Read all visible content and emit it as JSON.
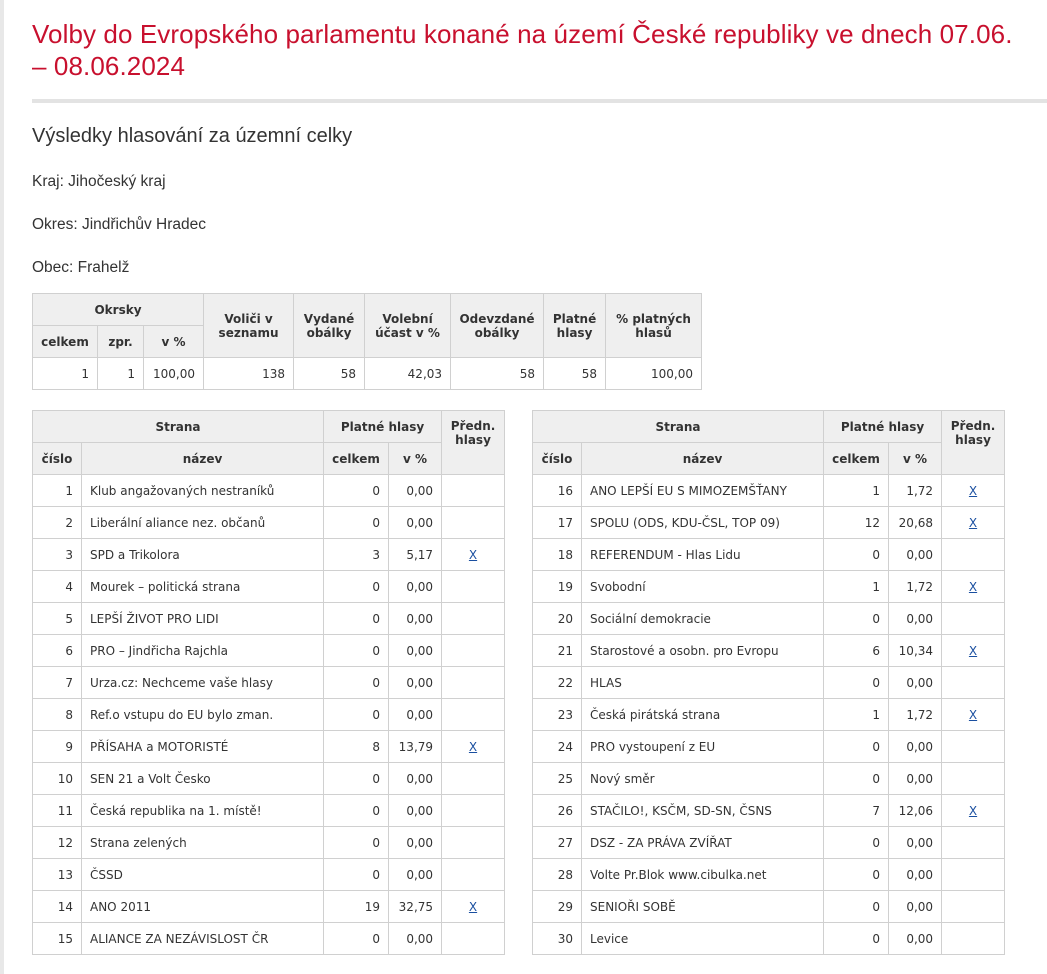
{
  "title": "Volby do Evropského parlamentu konané na území České republiky ve dnech 07.06. – 08.06.2024",
  "subtitle": "Výsledky hlasování za územní celky",
  "kraj": "Kraj: Jihočeský kraj",
  "okres": "Okres: Jindřichův Hradec",
  "obec": "Obec: Frahelž",
  "summary": {
    "headers": {
      "okrsky": "Okrsky",
      "celkem": "celkem",
      "zpr": "zpr.",
      "vpct": "v %",
      "volici": "Voliči v seznamu",
      "vydane": "Vydané obálky",
      "ucast": "Volební účast v %",
      "odevzdane": "Odevzdané obálky",
      "platne": "Platné hlasy",
      "pct_platnych": "% platných hlasů"
    },
    "values": {
      "celkem": "1",
      "zpr": "1",
      "vpct": "100,00",
      "volici": "138",
      "vydane": "58",
      "ucast": "42,03",
      "odevzdane": "58",
      "platne": "58",
      "pct_platnych": "100,00"
    }
  },
  "party_headers": {
    "strana": "Strana",
    "platne": "Platné hlasy",
    "predn": "Předn. hlasy",
    "cislo": "číslo",
    "nazev": "název",
    "celkem": "celkem",
    "vpct": "v %"
  },
  "parties_left": [
    {
      "num": "1",
      "name": "Klub angažovaných nestraníků",
      "votes": "0",
      "pct": "0,00",
      "pref": ""
    },
    {
      "num": "2",
      "name": "Liberální aliance nez. občanů",
      "votes": "0",
      "pct": "0,00",
      "pref": ""
    },
    {
      "num": "3",
      "name": "SPD a Trikolora",
      "votes": "3",
      "pct": "5,17",
      "pref": "X"
    },
    {
      "num": "4",
      "name": "Mourek – politická strana",
      "votes": "0",
      "pct": "0,00",
      "pref": ""
    },
    {
      "num": "5",
      "name": "LEPŠÍ ŽIVOT PRO LIDI",
      "votes": "0",
      "pct": "0,00",
      "pref": ""
    },
    {
      "num": "6",
      "name": "PRO – Jindřicha Rajchla",
      "votes": "0",
      "pct": "0,00",
      "pref": ""
    },
    {
      "num": "7",
      "name": "Urza.cz: Nechceme vaše hlasy",
      "votes": "0",
      "pct": "0,00",
      "pref": ""
    },
    {
      "num": "8",
      "name": "Ref.o vstupu do EU bylo zman.",
      "votes": "0",
      "pct": "0,00",
      "pref": ""
    },
    {
      "num": "9",
      "name": "PŘÍSAHA a MOTORISTÉ",
      "votes": "8",
      "pct": "13,79",
      "pref": "X"
    },
    {
      "num": "10",
      "name": "SEN 21 a Volt Česko",
      "votes": "0",
      "pct": "0,00",
      "pref": ""
    },
    {
      "num": "11",
      "name": "Česká republika na 1. místě!",
      "votes": "0",
      "pct": "0,00",
      "pref": ""
    },
    {
      "num": "12",
      "name": "Strana zelených",
      "votes": "0",
      "pct": "0,00",
      "pref": ""
    },
    {
      "num": "13",
      "name": "ČSSD",
      "votes": "0",
      "pct": "0,00",
      "pref": ""
    },
    {
      "num": "14",
      "name": "ANO 2011",
      "votes": "19",
      "pct": "32,75",
      "pref": "X"
    },
    {
      "num": "15",
      "name": "ALIANCE ZA NEZÁVISLOST ČR",
      "votes": "0",
      "pct": "0,00",
      "pref": ""
    }
  ],
  "parties_right": [
    {
      "num": "16",
      "name": "ANO LEPŠÍ EU S MIMOZEMŠŤANY",
      "votes": "1",
      "pct": "1,72",
      "pref": "X"
    },
    {
      "num": "17",
      "name": "SPOLU (ODS, KDU-ČSL, TOP 09)",
      "votes": "12",
      "pct": "20,68",
      "pref": "X"
    },
    {
      "num": "18",
      "name": "REFERENDUM - Hlas Lidu",
      "votes": "0",
      "pct": "0,00",
      "pref": ""
    },
    {
      "num": "19",
      "name": "Svobodní",
      "votes": "1",
      "pct": "1,72",
      "pref": "X"
    },
    {
      "num": "20",
      "name": "Sociální demokracie",
      "votes": "0",
      "pct": "0,00",
      "pref": ""
    },
    {
      "num": "21",
      "name": "Starostové a osobn. pro Evropu",
      "votes": "6",
      "pct": "10,34",
      "pref": "X"
    },
    {
      "num": "22",
      "name": "HLAS",
      "votes": "0",
      "pct": "0,00",
      "pref": ""
    },
    {
      "num": "23",
      "name": "Česká pirátská strana",
      "votes": "1",
      "pct": "1,72",
      "pref": "X"
    },
    {
      "num": "24",
      "name": "PRO vystoupení z EU",
      "votes": "0",
      "pct": "0,00",
      "pref": ""
    },
    {
      "num": "25",
      "name": "Nový směr",
      "votes": "0",
      "pct": "0,00",
      "pref": ""
    },
    {
      "num": "26",
      "name": "STAČILO!, KSČM, SD-SN, ČSNS",
      "votes": "7",
      "pct": "12,06",
      "pref": "X"
    },
    {
      "num": "27",
      "name": "DSZ - ZA PRÁVA ZVÍŘAT",
      "votes": "0",
      "pct": "0,00",
      "pref": ""
    },
    {
      "num": "28",
      "name": "Volte Pr.Blok www.cibulka.net",
      "votes": "0",
      "pct": "0,00",
      "pref": ""
    },
    {
      "num": "29",
      "name": "SENIOŘI SOBĚ",
      "votes": "0",
      "pct": "0,00",
      "pref": ""
    },
    {
      "num": "30",
      "name": "Levice",
      "votes": "0",
      "pct": "0,00",
      "pref": ""
    }
  ]
}
